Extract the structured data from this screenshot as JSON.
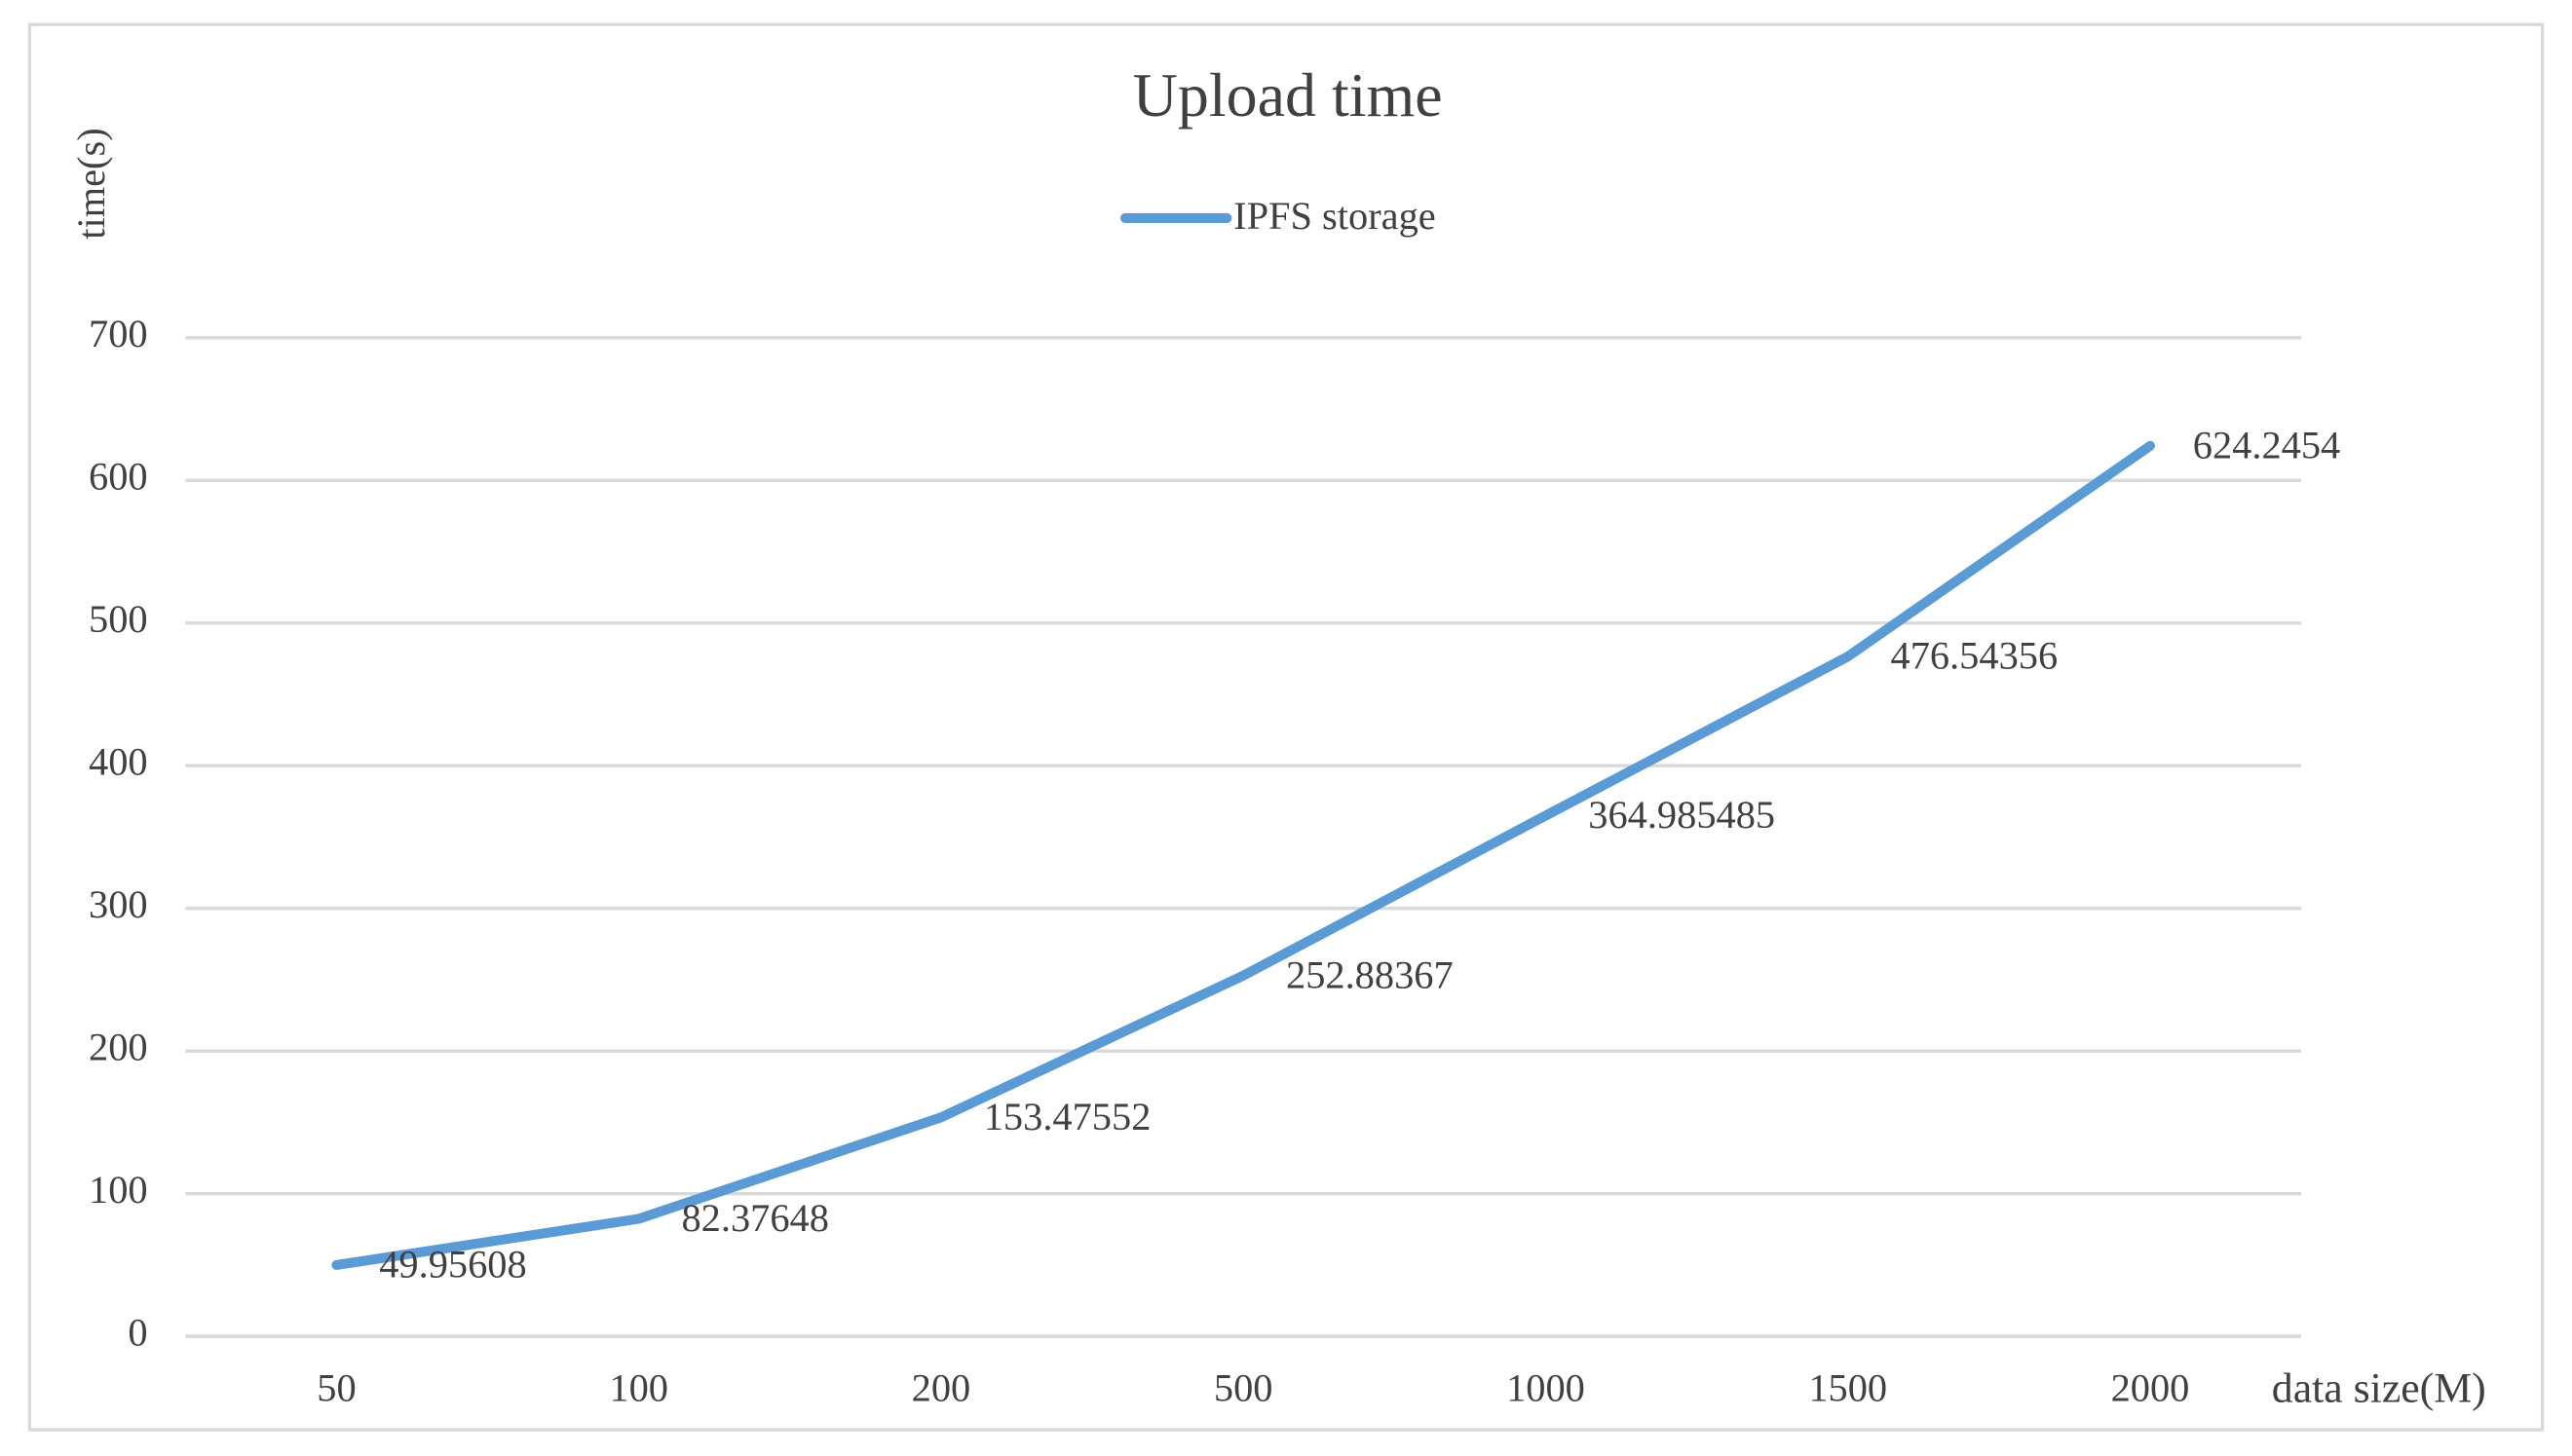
{
  "chart_data": {
    "type": "line",
    "title": "Upload time",
    "y_label": "time(s)",
    "x_label": "data size(M)",
    "categories": [
      "50",
      "100",
      "200",
      "500",
      "1000",
      "1500",
      "2000"
    ],
    "series": [
      {
        "name": "IPFS storage",
        "color": "#5b9bd5",
        "values": [
          49.95608,
          82.37648,
          153.47552,
          252.88367,
          364.985485,
          476.54356,
          624.2454
        ]
      }
    ],
    "ylim": [
      0,
      700
    ],
    "yticks": [
      0,
      100,
      200,
      300,
      400,
      500,
      600,
      700
    ],
    "grid": true,
    "legend": "top"
  }
}
